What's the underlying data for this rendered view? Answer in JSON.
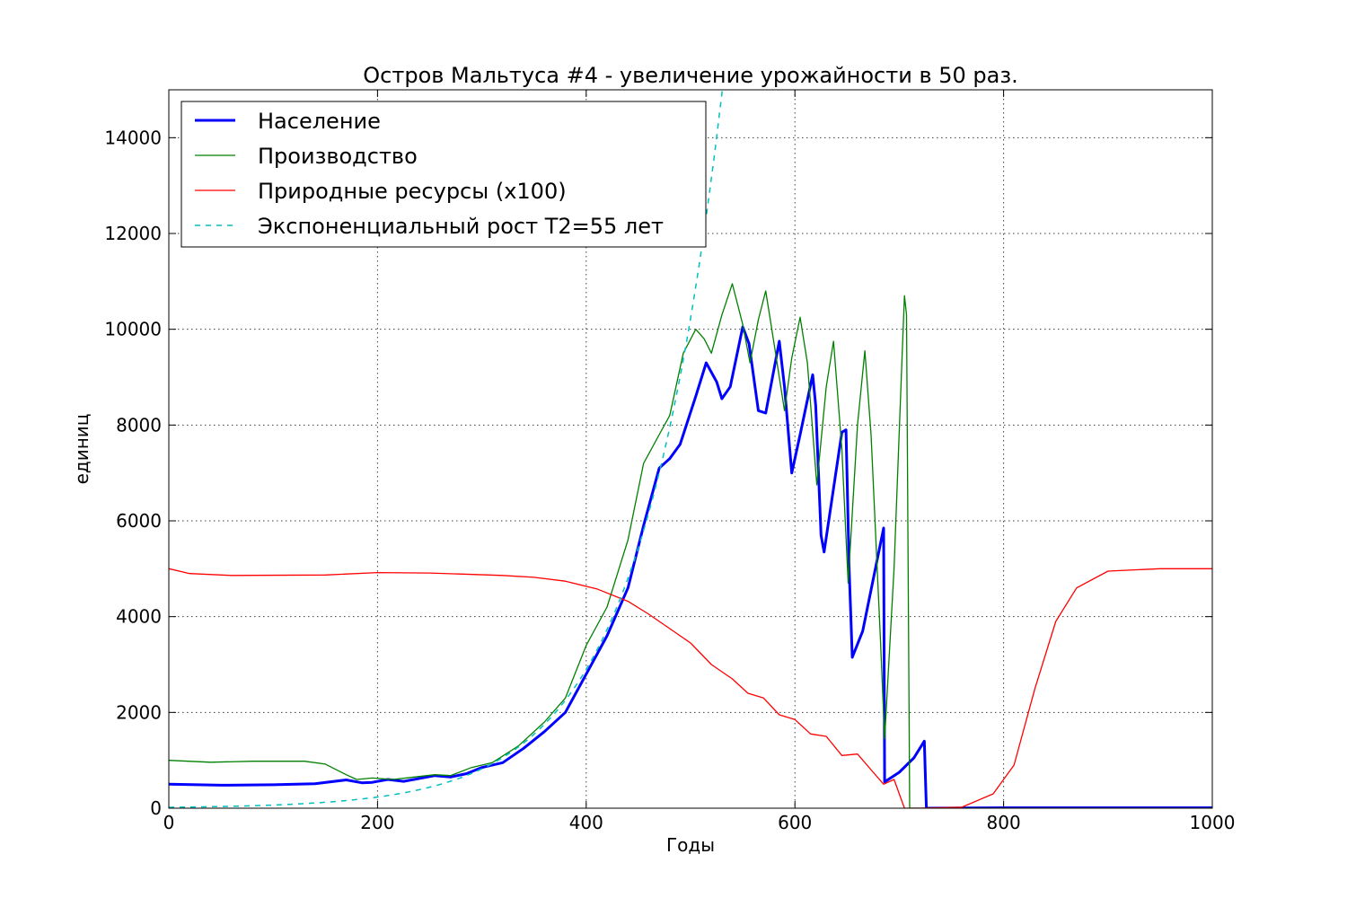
{
  "chart_data": {
    "type": "line",
    "title": "Остров Мальтуса #4 - увеличение урожайности в 50 раз.",
    "xlabel": "Годы",
    "ylabel": "единиц",
    "xlim": [
      0,
      1000
    ],
    "ylim": [
      0,
      15000
    ],
    "x_ticks": [
      0,
      200,
      400,
      600,
      800,
      1000
    ],
    "y_ticks": [
      0,
      2000,
      4000,
      6000,
      8000,
      10000,
      12000,
      14000
    ],
    "grid": true,
    "legend_position": "top-left",
    "series": [
      {
        "name": "Население",
        "color": "#0000ff",
        "style": "solid-thick",
        "points": [
          [
            0,
            500
          ],
          [
            50,
            480
          ],
          [
            100,
            490
          ],
          [
            140,
            510
          ],
          [
            170,
            590
          ],
          [
            185,
            530
          ],
          [
            195,
            540
          ],
          [
            210,
            600
          ],
          [
            225,
            560
          ],
          [
            240,
            620
          ],
          [
            255,
            680
          ],
          [
            270,
            650
          ],
          [
            285,
            720
          ],
          [
            300,
            850
          ],
          [
            320,
            950
          ],
          [
            340,
            1250
          ],
          [
            360,
            1600
          ],
          [
            380,
            2000
          ],
          [
            400,
            2800
          ],
          [
            420,
            3600
          ],
          [
            440,
            4600
          ],
          [
            455,
            5900
          ],
          [
            470,
            7100
          ],
          [
            480,
            7300
          ],
          [
            490,
            7600
          ],
          [
            505,
            8600
          ],
          [
            515,
            9300
          ],
          [
            525,
            8900
          ],
          [
            530,
            8550
          ],
          [
            538,
            8800
          ],
          [
            550,
            10050
          ],
          [
            556,
            9700
          ],
          [
            565,
            8300
          ],
          [
            572,
            8250
          ],
          [
            585,
            9750
          ],
          [
            590,
            8800
          ],
          [
            597,
            7000
          ],
          [
            605,
            7800
          ],
          [
            617,
            9050
          ],
          [
            620,
            8400
          ],
          [
            625,
            5700
          ],
          [
            628,
            5350
          ],
          [
            645,
            7850
          ],
          [
            649,
            7900
          ],
          [
            652,
            5000
          ],
          [
            655,
            3150
          ],
          [
            665,
            3700
          ],
          [
            685,
            5850
          ],
          [
            686,
            550
          ],
          [
            700,
            750
          ],
          [
            714,
            1050
          ],
          [
            724,
            1400
          ],
          [
            726,
            0
          ],
          [
            800,
            10
          ],
          [
            1000,
            10
          ]
        ]
      },
      {
        "name": "Производство",
        "color": "#008000",
        "style": "solid",
        "points": [
          [
            0,
            1000
          ],
          [
            40,
            960
          ],
          [
            80,
            980
          ],
          [
            130,
            980
          ],
          [
            150,
            920
          ],
          [
            170,
            700
          ],
          [
            180,
            600
          ],
          [
            195,
            630
          ],
          [
            215,
            600
          ],
          [
            235,
            650
          ],
          [
            255,
            700
          ],
          [
            270,
            680
          ],
          [
            290,
            850
          ],
          [
            310,
            950
          ],
          [
            335,
            1300
          ],
          [
            360,
            1800
          ],
          [
            380,
            2300
          ],
          [
            400,
            3400
          ],
          [
            420,
            4200
          ],
          [
            440,
            5600
          ],
          [
            455,
            7200
          ],
          [
            470,
            7800
          ],
          [
            480,
            8200
          ],
          [
            493,
            9500
          ],
          [
            505,
            10000
          ],
          [
            513,
            9800
          ],
          [
            520,
            9500
          ],
          [
            530,
            10300
          ],
          [
            540,
            10950
          ],
          [
            550,
            10100
          ],
          [
            557,
            9300
          ],
          [
            565,
            10200
          ],
          [
            572,
            10800
          ],
          [
            580,
            9700
          ],
          [
            590,
            8300
          ],
          [
            597,
            9400
          ],
          [
            605,
            10250
          ],
          [
            612,
            9300
          ],
          [
            621,
            6750
          ],
          [
            630,
            8800
          ],
          [
            637,
            9750
          ],
          [
            645,
            7500
          ],
          [
            651,
            4700
          ],
          [
            660,
            8000
          ],
          [
            667,
            9550
          ],
          [
            673,
            7800
          ],
          [
            682,
            3500
          ],
          [
            686,
            1450
          ],
          [
            695,
            5000
          ],
          [
            703,
            9600
          ],
          [
            705,
            10700
          ],
          [
            707,
            10300
          ],
          [
            710,
            0
          ],
          [
            730,
            0
          ],
          [
            1000,
            0
          ]
        ]
      },
      {
        "name": "Природные ресурсы (х100)",
        "color": "#ff0000",
        "style": "solid",
        "points": [
          [
            0,
            5000
          ],
          [
            20,
            4900
          ],
          [
            60,
            4860
          ],
          [
            150,
            4870
          ],
          [
            200,
            4920
          ],
          [
            250,
            4910
          ],
          [
            320,
            4860
          ],
          [
            350,
            4820
          ],
          [
            380,
            4740
          ],
          [
            410,
            4580
          ],
          [
            440,
            4320
          ],
          [
            460,
            4050
          ],
          [
            480,
            3750
          ],
          [
            500,
            3450
          ],
          [
            520,
            3000
          ],
          [
            540,
            2700
          ],
          [
            555,
            2400
          ],
          [
            570,
            2300
          ],
          [
            585,
            1950
          ],
          [
            600,
            1850
          ],
          [
            615,
            1550
          ],
          [
            630,
            1500
          ],
          [
            645,
            1100
          ],
          [
            660,
            1130
          ],
          [
            675,
            750
          ],
          [
            685,
            500
          ],
          [
            695,
            600
          ],
          [
            705,
            0
          ],
          [
            720,
            0
          ],
          [
            760,
            20
          ],
          [
            790,
            300
          ],
          [
            810,
            900
          ],
          [
            830,
            2500
          ],
          [
            850,
            3900
          ],
          [
            870,
            4600
          ],
          [
            900,
            4950
          ],
          [
            950,
            5000
          ],
          [
            1000,
            5000
          ]
        ]
      },
      {
        "name": "Экспоненциальный рост T2=55 лет",
        "color": "#00bfbf",
        "style": "dashed",
        "function": "exponential",
        "doubling_time": 55,
        "value_at_400": 2900
      }
    ]
  }
}
